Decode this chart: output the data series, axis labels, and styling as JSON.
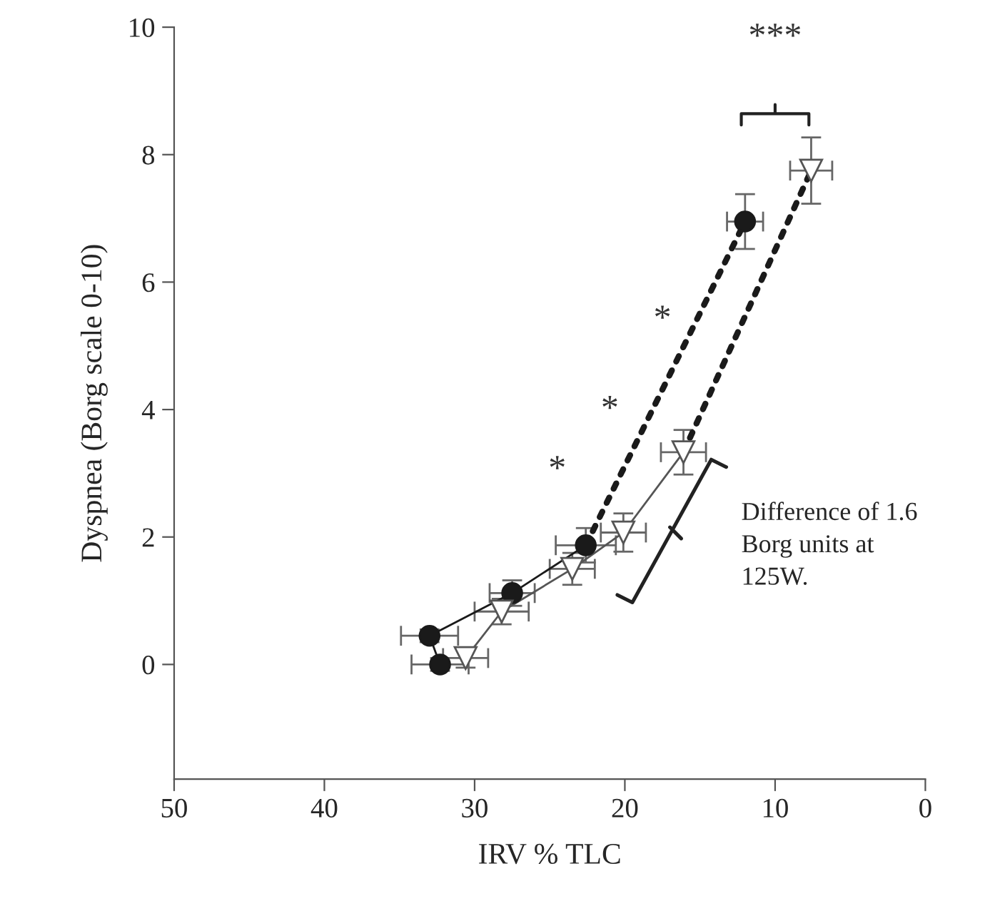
{
  "chart_data": {
    "type": "line",
    "xlabel": "IRV % TLC",
    "ylabel": "Dyspnea (Borg scale 0-10)",
    "xlim": [
      50,
      0
    ],
    "xticks": [
      50,
      40,
      30,
      20,
      10,
      0
    ],
    "ylim": [
      -1.8,
      10
    ],
    "yticks": [
      0,
      2,
      4,
      6,
      8,
      10
    ],
    "grid": false,
    "legend": false,
    "series": [
      {
        "marker": "circle",
        "line_style": "solid",
        "color": "#1a1a1a",
        "x": [
          32.3,
          33.0,
          27.5,
          22.6
        ],
        "values": [
          0.0,
          0.45,
          1.12,
          1.87
        ],
        "xerrors": [
          1.9,
          1.9,
          1.5,
          2.0
        ],
        "errors": [
          0.1,
          0.1,
          0.2,
          0.27
        ]
      },
      {
        "marker": "circle",
        "line_style": "none",
        "color": "#1a1a1a",
        "x": [
          12.0
        ],
        "values": [
          6.95
        ],
        "xerrors": [
          1.2
        ],
        "errors": [
          0.43
        ]
      },
      {
        "marker": "none",
        "line_style": "dotted",
        "color": "#1a1a1a",
        "x": [
          22.6,
          12.0
        ],
        "values": [
          1.87,
          6.95
        ]
      },
      {
        "marker": "triangle",
        "line_style": "solid",
        "color": "#555555",
        "x": [
          30.6,
          28.2,
          23.5,
          20.1,
          16.1
        ],
        "values": [
          0.1,
          0.83,
          1.5,
          2.07,
          3.33
        ],
        "xerrors": [
          1.5,
          1.8,
          1.5,
          1.5,
          1.5
        ],
        "errors": [
          0.15,
          0.2,
          0.25,
          0.3,
          0.35
        ]
      },
      {
        "marker": "triangle",
        "line_style": "none",
        "color": "#555555",
        "x": [
          7.6
        ],
        "values": [
          7.75
        ],
        "xerrors": [
          1.4
        ],
        "errors": [
          0.52
        ]
      },
      {
        "marker": "none",
        "line_style": "dotted",
        "color": "#1a1a1a",
        "x": [
          16.1,
          7.6
        ],
        "values": [
          3.33,
          7.75
        ]
      }
    ],
    "annotations": [
      "*",
      "*",
      "*",
      "***",
      "Difference of 1.6\nBorg units at\n125W."
    ]
  }
}
